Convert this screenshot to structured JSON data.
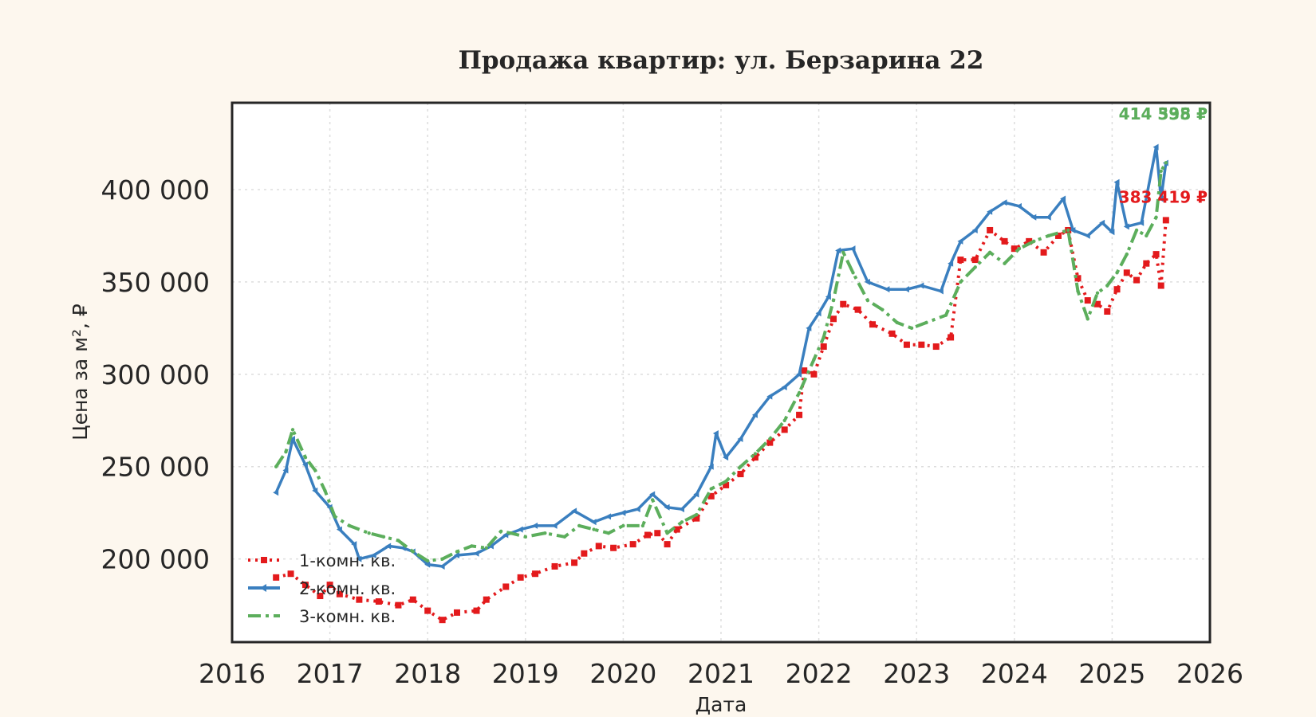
{
  "chart_data": {
    "type": "line",
    "title": "Продажа квартир: ул. Берзарина 22",
    "xlabel": "Дата",
    "ylabel": "Цена за м², ₽",
    "xlim": [
      2016,
      2026
    ],
    "ylim": [
      155000,
      447000
    ],
    "x_ticks": [
      "2016",
      "2017",
      "2018",
      "2019",
      "2020",
      "2021",
      "2022",
      "2023",
      "2024",
      "2025",
      "2026"
    ],
    "y_ticks": [
      {
        "value": 200000,
        "label": "200 000"
      },
      {
        "value": 250000,
        "label": "250 000"
      },
      {
        "value": 300000,
        "label": "300 000"
      },
      {
        "value": 350000,
        "label": "350 000"
      },
      {
        "value": 400000,
        "label": "400 000"
      }
    ],
    "grid": true,
    "legend_position": "lower-left",
    "series": [
      {
        "name": "1-комн. кв.",
        "color": "#e31a1c",
        "style": "dotted-square",
        "end_label": "383 419 ₽",
        "points": [
          [
            2016.45,
            190000
          ],
          [
            2016.6,
            192000
          ],
          [
            2016.75,
            186000
          ],
          [
            2016.9,
            180000
          ],
          [
            2017.0,
            186000
          ],
          [
            2017.1,
            181000
          ],
          [
            2017.3,
            178000
          ],
          [
            2017.5,
            177000
          ],
          [
            2017.7,
            175000
          ],
          [
            2017.85,
            178000
          ],
          [
            2018.0,
            172000
          ],
          [
            2018.15,
            167000
          ],
          [
            2018.3,
            171000
          ],
          [
            2018.5,
            172000
          ],
          [
            2018.6,
            178000
          ],
          [
            2018.8,
            185000
          ],
          [
            2018.95,
            190000
          ],
          [
            2019.1,
            192000
          ],
          [
            2019.3,
            196000
          ],
          [
            2019.5,
            198000
          ],
          [
            2019.6,
            203000
          ],
          [
            2019.75,
            207000
          ],
          [
            2019.9,
            206000
          ],
          [
            2020.1,
            208000
          ],
          [
            2020.25,
            213000
          ],
          [
            2020.35,
            214000
          ],
          [
            2020.45,
            208000
          ],
          [
            2020.55,
            216000
          ],
          [
            2020.75,
            222000
          ],
          [
            2020.9,
            234000
          ],
          [
            2021.05,
            240000
          ],
          [
            2021.2,
            246000
          ],
          [
            2021.35,
            255000
          ],
          [
            2021.5,
            263000
          ],
          [
            2021.65,
            270000
          ],
          [
            2021.8,
            278000
          ],
          [
            2021.85,
            302000
          ],
          [
            2021.95,
            300000
          ],
          [
            2022.05,
            315000
          ],
          [
            2022.15,
            330000
          ],
          [
            2022.25,
            338000
          ],
          [
            2022.4,
            335000
          ],
          [
            2022.55,
            327000
          ],
          [
            2022.75,
            322000
          ],
          [
            2022.9,
            316000
          ],
          [
            2023.05,
            316000
          ],
          [
            2023.2,
            315000
          ],
          [
            2023.35,
            320000
          ],
          [
            2023.45,
            362000
          ],
          [
            2023.6,
            362000
          ],
          [
            2023.75,
            378000
          ],
          [
            2023.9,
            372000
          ],
          [
            2024.0,
            368000
          ],
          [
            2024.15,
            372000
          ],
          [
            2024.3,
            366000
          ],
          [
            2024.45,
            375000
          ],
          [
            2024.55,
            378000
          ],
          [
            2024.65,
            352000
          ],
          [
            2024.75,
            340000
          ],
          [
            2024.85,
            338000
          ],
          [
            2024.95,
            334000
          ],
          [
            2025.05,
            346000
          ],
          [
            2025.15,
            355000
          ],
          [
            2025.25,
            351000
          ],
          [
            2025.35,
            360000
          ],
          [
            2025.45,
            365000
          ],
          [
            2025.5,
            348000
          ],
          [
            2025.55,
            383419
          ]
        ]
      },
      {
        "name": "2-комн. кв.",
        "color": "#3a7fbf",
        "style": "solid-triangle",
        "end_label": "414 395 ₽",
        "points": [
          [
            2016.45,
            236000
          ],
          [
            2016.55,
            248000
          ],
          [
            2016.62,
            265000
          ],
          [
            2016.75,
            251000
          ],
          [
            2016.85,
            237000
          ],
          [
            2017.0,
            228000
          ],
          [
            2017.1,
            216000
          ],
          [
            2017.25,
            208000
          ],
          [
            2017.3,
            200000
          ],
          [
            2017.45,
            202000
          ],
          [
            2017.6,
            207000
          ],
          [
            2017.75,
            206000
          ],
          [
            2017.85,
            204000
          ],
          [
            2018.0,
            197000
          ],
          [
            2018.15,
            196000
          ],
          [
            2018.3,
            202000
          ],
          [
            2018.5,
            203000
          ],
          [
            2018.65,
            207000
          ],
          [
            2018.8,
            213000
          ],
          [
            2018.95,
            216000
          ],
          [
            2019.1,
            218000
          ],
          [
            2019.3,
            218000
          ],
          [
            2019.5,
            226000
          ],
          [
            2019.7,
            220000
          ],
          [
            2019.85,
            223000
          ],
          [
            2020.0,
            225000
          ],
          [
            2020.15,
            227000
          ],
          [
            2020.3,
            235000
          ],
          [
            2020.45,
            228000
          ],
          [
            2020.6,
            227000
          ],
          [
            2020.75,
            235000
          ],
          [
            2020.9,
            250000
          ],
          [
            2020.95,
            268000
          ],
          [
            2021.05,
            255000
          ],
          [
            2021.2,
            265000
          ],
          [
            2021.35,
            278000
          ],
          [
            2021.5,
            288000
          ],
          [
            2021.65,
            293000
          ],
          [
            2021.8,
            300000
          ],
          [
            2021.9,
            325000
          ],
          [
            2022.0,
            333000
          ],
          [
            2022.1,
            342000
          ],
          [
            2022.2,
            367000
          ],
          [
            2022.35,
            368000
          ],
          [
            2022.5,
            350000
          ],
          [
            2022.7,
            346000
          ],
          [
            2022.9,
            346000
          ],
          [
            2023.05,
            348000
          ],
          [
            2023.25,
            345000
          ],
          [
            2023.35,
            360000
          ],
          [
            2023.45,
            372000
          ],
          [
            2023.6,
            378000
          ],
          [
            2023.75,
            388000
          ],
          [
            2023.9,
            393000
          ],
          [
            2024.05,
            391000
          ],
          [
            2024.2,
            385000
          ],
          [
            2024.35,
            385000
          ],
          [
            2024.5,
            395000
          ],
          [
            2024.6,
            378000
          ],
          [
            2024.75,
            375000
          ],
          [
            2024.9,
            382000
          ],
          [
            2025.0,
            377000
          ],
          [
            2025.05,
            404000
          ],
          [
            2025.15,
            380000
          ],
          [
            2025.3,
            382000
          ],
          [
            2025.45,
            423000
          ],
          [
            2025.5,
            395000
          ],
          [
            2025.55,
            414395
          ]
        ]
      },
      {
        "name": "3-комн. кв.",
        "color": "#5cae5c",
        "style": "dashdot",
        "end_label": "414 538 ₽",
        "points": [
          [
            2016.45,
            250000
          ],
          [
            2016.55,
            258000
          ],
          [
            2016.62,
            270000
          ],
          [
            2016.75,
            255000
          ],
          [
            2016.85,
            248000
          ],
          [
            2016.95,
            237000
          ],
          [
            2017.05,
            223000
          ],
          [
            2017.2,
            218000
          ],
          [
            2017.4,
            214000
          ],
          [
            2017.55,
            212000
          ],
          [
            2017.7,
            210000
          ],
          [
            2017.85,
            204000
          ],
          [
            2018.0,
            199000
          ],
          [
            2018.15,
            200000
          ],
          [
            2018.3,
            204000
          ],
          [
            2018.45,
            207000
          ],
          [
            2018.6,
            206000
          ],
          [
            2018.75,
            215000
          ],
          [
            2018.85,
            214000
          ],
          [
            2019.0,
            212000
          ],
          [
            2019.2,
            214000
          ],
          [
            2019.4,
            212000
          ],
          [
            2019.55,
            218000
          ],
          [
            2019.7,
            216000
          ],
          [
            2019.85,
            214000
          ],
          [
            2020.0,
            218000
          ],
          [
            2020.2,
            218000
          ],
          [
            2020.3,
            232000
          ],
          [
            2020.45,
            214000
          ],
          [
            2020.6,
            220000
          ],
          [
            2020.75,
            224000
          ],
          [
            2020.9,
            238000
          ],
          [
            2021.05,
            242000
          ],
          [
            2021.2,
            250000
          ],
          [
            2021.35,
            257000
          ],
          [
            2021.5,
            265000
          ],
          [
            2021.65,
            275000
          ],
          [
            2021.8,
            290000
          ],
          [
            2021.95,
            308000
          ],
          [
            2022.05,
            320000
          ],
          [
            2022.15,
            340000
          ],
          [
            2022.25,
            366000
          ],
          [
            2022.35,
            355000
          ],
          [
            2022.5,
            340000
          ],
          [
            2022.65,
            335000
          ],
          [
            2022.8,
            328000
          ],
          [
            2022.95,
            325000
          ],
          [
            2023.1,
            328000
          ],
          [
            2023.3,
            332000
          ],
          [
            2023.45,
            350000
          ],
          [
            2023.6,
            358000
          ],
          [
            2023.75,
            366000
          ],
          [
            2023.9,
            360000
          ],
          [
            2024.05,
            368000
          ],
          [
            2024.2,
            372000
          ],
          [
            2024.35,
            375000
          ],
          [
            2024.55,
            378000
          ],
          [
            2024.65,
            345000
          ],
          [
            2024.75,
            330000
          ],
          [
            2024.85,
            344000
          ],
          [
            2024.95,
            348000
          ],
          [
            2025.05,
            355000
          ],
          [
            2025.15,
            365000
          ],
          [
            2025.25,
            378000
          ],
          [
            2025.35,
            375000
          ],
          [
            2025.45,
            385000
          ],
          [
            2025.5,
            410000
          ],
          [
            2025.55,
            414538
          ]
        ]
      }
    ]
  }
}
